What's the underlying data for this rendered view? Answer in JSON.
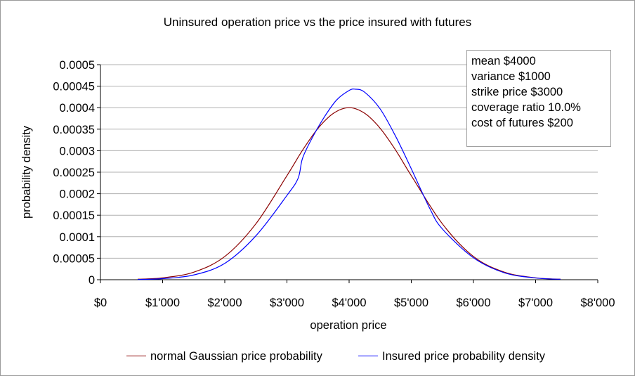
{
  "chart_data": {
    "type": "line",
    "title": "Uninsured operation price vs the price insured with futures",
    "xlabel": "operation price",
    "ylabel": "probability density",
    "xlim": [
      0,
      8000
    ],
    "ylim": [
      0,
      0.0005
    ],
    "x_ticks": [
      "$0",
      "$1'000",
      "$2'000",
      "$3'000",
      "$4'000",
      "$5'000",
      "$6'000",
      "$7'000",
      "$8'000"
    ],
    "y_ticks": [
      "0",
      "0.00005",
      "0.0001",
      "0.00015",
      "0.0002",
      "0.00025",
      "0.0003",
      "0.00035",
      "0.0004",
      "0.00045",
      "0.0005"
    ],
    "grid": "horizontal",
    "legend_position": "bottom",
    "annotation_lines": [
      "mean $4000",
      "variance $1000",
      "strike price $3000",
      "coverage ratio 10.0%",
      "cost of futures $200"
    ],
    "series": [
      {
        "name": "normal Gaussian price probability",
        "color": "#8b0000",
        "x": [
          600,
          1000,
          1500,
          2000,
          2500,
          3000,
          3250,
          3500,
          3750,
          4000,
          4250,
          4500,
          4750,
          5000,
          5500,
          6000,
          6500,
          7000,
          7400
        ],
        "y": [
          1.2e-06,
          4.4e-06,
          1.75e-05,
          5.4e-05,
          0.00013,
          0.000242,
          0.000301,
          0.000352,
          0.000387,
          0.0004,
          0.000387,
          0.000352,
          0.000301,
          0.000242,
          0.00013,
          5.4e-05,
          1.75e-05,
          4.4e-06,
          1.2e-06
        ]
      },
      {
        "name": "Insured price probability density",
        "color": "#0000ff",
        "x": [
          600,
          1000,
          1500,
          2000,
          2500,
          3000,
          3180,
          3250,
          3400,
          3600,
          3800,
          4000,
          4100,
          4250,
          4500,
          4750,
          5000,
          5300,
          5500,
          6000,
          6500,
          7000,
          7400
        ],
        "y": [
          6e-07,
          2.5e-06,
          1.1e-05,
          3.8e-05,
          0.000102,
          0.000196,
          0.000236,
          0.000282,
          0.000328,
          0.000378,
          0.000418,
          0.00044,
          0.000443,
          0.000436,
          0.000397,
          0.000333,
          0.000258,
          0.000165,
          0.000118,
          5.1e-05,
          1.6e-05,
          4e-06,
          1e-06
        ]
      }
    ]
  }
}
